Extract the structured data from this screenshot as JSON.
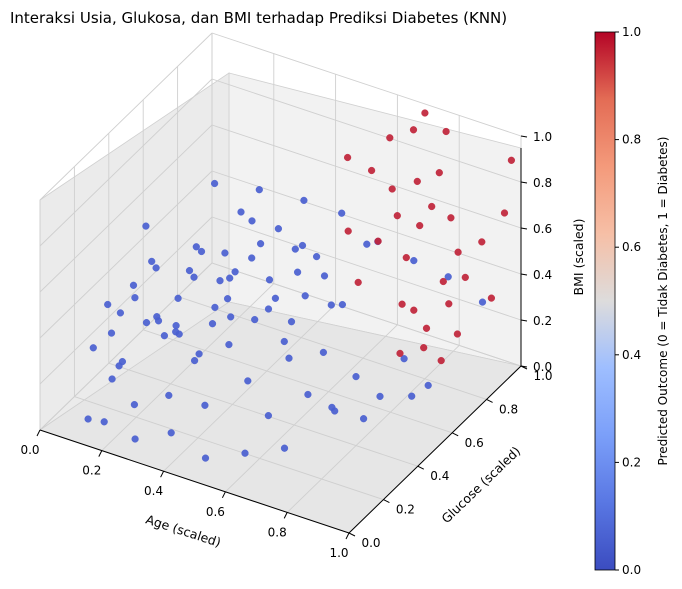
{
  "chart_data": {
    "type": "scatter",
    "title": "Interaksi Usia, Glukosa, dan BMI terhadap Prediksi Diabetes (KNN)",
    "xlabel": "Age (scaled)",
    "ylabel": "Glucose (scaled)",
    "zlabel": "BMI (scaled)",
    "xlim": [
      0,
      1
    ],
    "ylim": [
      0,
      1
    ],
    "zlim": [
      0,
      1
    ],
    "x_ticks": [
      "0.0",
      "0.2",
      "0.4",
      "0.6",
      "0.8",
      "1.0"
    ],
    "y_ticks": [
      "0.0",
      "0.2",
      "0.4",
      "0.6",
      "0.8",
      "1.0"
    ],
    "z_ticks": [
      "0.0",
      "0.2",
      "0.4",
      "0.6",
      "0.8",
      "1.0"
    ],
    "grid": true,
    "colorbar": {
      "label": "Predicted Outcome (0 = Tidak Diabetes, 1 = Diabetes)",
      "ticks": [
        "0.0",
        "0.2",
        "0.4",
        "0.6",
        "0.8",
        "1.0"
      ],
      "colormap": "coolwarm",
      "low_color": "#3b4cc0",
      "high_color": "#b40426"
    },
    "series": [
      {
        "outcome": 0,
        "color": "#4a5fd0",
        "points": [
          [
            0.05,
            0.22,
            0.22
          ],
          [
            0.08,
            0.25,
            0.4
          ],
          [
            0.1,
            0.28,
            0.12
          ],
          [
            0.12,
            0.2,
            0.33
          ],
          [
            0.14,
            0.3,
            0.42
          ],
          [
            0.15,
            0.35,
            0.28
          ],
          [
            0.16,
            0.18,
            0.45
          ],
          [
            0.18,
            0.4,
            0.2
          ],
          [
            0.18,
            0.22,
            0.55
          ],
          [
            0.2,
            0.32,
            0.35
          ],
          [
            0.2,
            0.45,
            0.18
          ],
          [
            0.22,
            0.28,
            0.6
          ],
          [
            0.22,
            0.5,
            0.4
          ],
          [
            0.24,
            0.36,
            0.3
          ],
          [
            0.25,
            0.2,
            0.7
          ],
          [
            0.25,
            0.42,
            0.5
          ],
          [
            0.26,
            0.55,
            0.25
          ],
          [
            0.28,
            0.3,
            0.48
          ],
          [
            0.28,
            0.6,
            0.35
          ],
          [
            0.3,
            0.4,
            0.62
          ],
          [
            0.3,
            0.25,
            0.38
          ],
          [
            0.32,
            0.5,
            0.55
          ],
          [
            0.32,
            0.35,
            0.22
          ],
          [
            0.34,
            0.62,
            0.45
          ],
          [
            0.35,
            0.28,
            0.75
          ],
          [
            0.35,
            0.48,
            0.3
          ],
          [
            0.36,
            0.4,
            0.52
          ],
          [
            0.38,
            0.55,
            0.68
          ],
          [
            0.38,
            0.32,
            0.4
          ],
          [
            0.4,
            0.65,
            0.28
          ],
          [
            0.4,
            0.45,
            0.8
          ],
          [
            0.42,
            0.38,
            0.6
          ],
          [
            0.42,
            0.58,
            0.42
          ],
          [
            0.44,
            0.3,
            0.55
          ],
          [
            0.45,
            0.52,
            0.35
          ],
          [
            0.46,
            0.7,
            0.5
          ],
          [
            0.48,
            0.42,
            0.72
          ],
          [
            0.48,
            0.6,
            0.25
          ],
          [
            0.5,
            0.35,
            0.45
          ],
          [
            0.52,
            0.55,
            0.62
          ],
          [
            0.52,
            0.72,
            0.38
          ],
          [
            0.54,
            0.45,
            0.3
          ],
          [
            0.55,
            0.62,
            0.55
          ],
          [
            0.56,
            0.38,
            0.85
          ],
          [
            0.58,
            0.5,
            0.48
          ],
          [
            0.6,
            0.68,
            0.32
          ],
          [
            0.6,
            0.42,
            0.65
          ],
          [
            0.62,
            0.58,
            0.4
          ],
          [
            0.64,
            0.75,
            0.55
          ],
          [
            0.65,
            0.48,
            0.28
          ],
          [
            0.15,
            0.15,
            0.18
          ],
          [
            0.2,
            0.12,
            0.3
          ],
          [
            0.25,
            0.1,
            0.15
          ],
          [
            0.3,
            0.15,
            0.5
          ],
          [
            0.35,
            0.12,
            0.22
          ],
          [
            0.4,
            0.18,
            0.35
          ],
          [
            0.45,
            0.15,
            0.2
          ],
          [
            0.5,
            0.2,
            0.45
          ],
          [
            0.55,
            0.22,
            0.3
          ],
          [
            0.6,
            0.25,
            0.15
          ],
          [
            0.65,
            0.28,
            0.4
          ],
          [
            0.7,
            0.3,
            0.25
          ],
          [
            0.75,
            0.35,
            0.18
          ],
          [
            0.8,
            0.4,
            0.3
          ],
          [
            0.85,
            0.45,
            0.2
          ],
          [
            0.9,
            0.5,
            0.35
          ],
          [
            0.95,
            0.55,
            0.22
          ],
          [
            0.72,
            0.42,
            0.1
          ],
          [
            0.78,
            0.48,
            0.05
          ],
          [
            0.88,
            0.58,
            0.12
          ],
          [
            0.68,
            0.2,
            0.08
          ],
          [
            0.58,
            0.15,
            0.05
          ],
          [
            0.48,
            0.1,
            0.02
          ],
          [
            0.38,
            0.08,
            0.1
          ],
          [
            0.28,
            0.05,
            0.05
          ],
          [
            0.18,
            0.05,
            0.08
          ],
          [
            0.1,
            0.1,
            0.02
          ],
          [
            0.12,
            0.4,
            0.65
          ],
          [
            0.22,
            0.62,
            0.72
          ],
          [
            0.32,
            0.7,
            0.68
          ],
          [
            0.42,
            0.78,
            0.62
          ],
          [
            0.52,
            0.82,
            0.58
          ],
          [
            0.62,
            0.85,
            0.48
          ],
          [
            0.72,
            0.88,
            0.42
          ],
          [
            0.82,
            0.9,
            0.38
          ],
          [
            0.92,
            0.92,
            0.3
          ]
        ]
      },
      {
        "outcome": 1,
        "color": "#c0243a",
        "points": [
          [
            0.55,
            0.8,
            0.85
          ],
          [
            0.6,
            0.85,
            0.78
          ],
          [
            0.65,
            0.88,
            0.7
          ],
          [
            0.7,
            0.82,
            0.65
          ],
          [
            0.62,
            0.92,
            0.88
          ],
          [
            0.68,
            0.95,
            0.92
          ],
          [
            0.72,
            0.9,
            0.75
          ],
          [
            0.75,
            0.86,
            0.6
          ],
          [
            0.78,
            0.92,
            0.8
          ],
          [
            0.58,
            0.75,
            0.58
          ],
          [
            0.66,
            0.78,
            0.55
          ],
          [
            0.74,
            0.8,
            0.5
          ],
          [
            0.8,
            0.84,
            0.72
          ],
          [
            0.84,
            0.88,
            0.66
          ],
          [
            0.86,
            0.8,
            0.45
          ],
          [
            0.88,
            0.85,
            0.55
          ],
          [
            0.9,
            0.76,
            0.4
          ],
          [
            0.92,
            0.82,
            0.48
          ],
          [
            0.94,
            0.88,
            0.6
          ],
          [
            0.96,
            0.9,
            0.35
          ],
          [
            0.98,
            0.94,
            0.7
          ],
          [
            0.82,
            0.7,
            0.38
          ],
          [
            0.85,
            0.72,
            0.3
          ],
          [
            0.88,
            0.65,
            0.28
          ],
          [
            0.92,
            0.68,
            0.22
          ],
          [
            0.95,
            0.72,
            0.32
          ],
          [
            0.78,
            0.96,
            0.95
          ],
          [
            0.98,
            0.98,
            0.9
          ],
          [
            0.7,
            0.98,
            0.98
          ],
          [
            0.64,
            0.7,
            0.42
          ],
          [
            0.76,
            0.74,
            0.35
          ],
          [
            0.82,
            0.62,
            0.25
          ]
        ]
      }
    ]
  }
}
